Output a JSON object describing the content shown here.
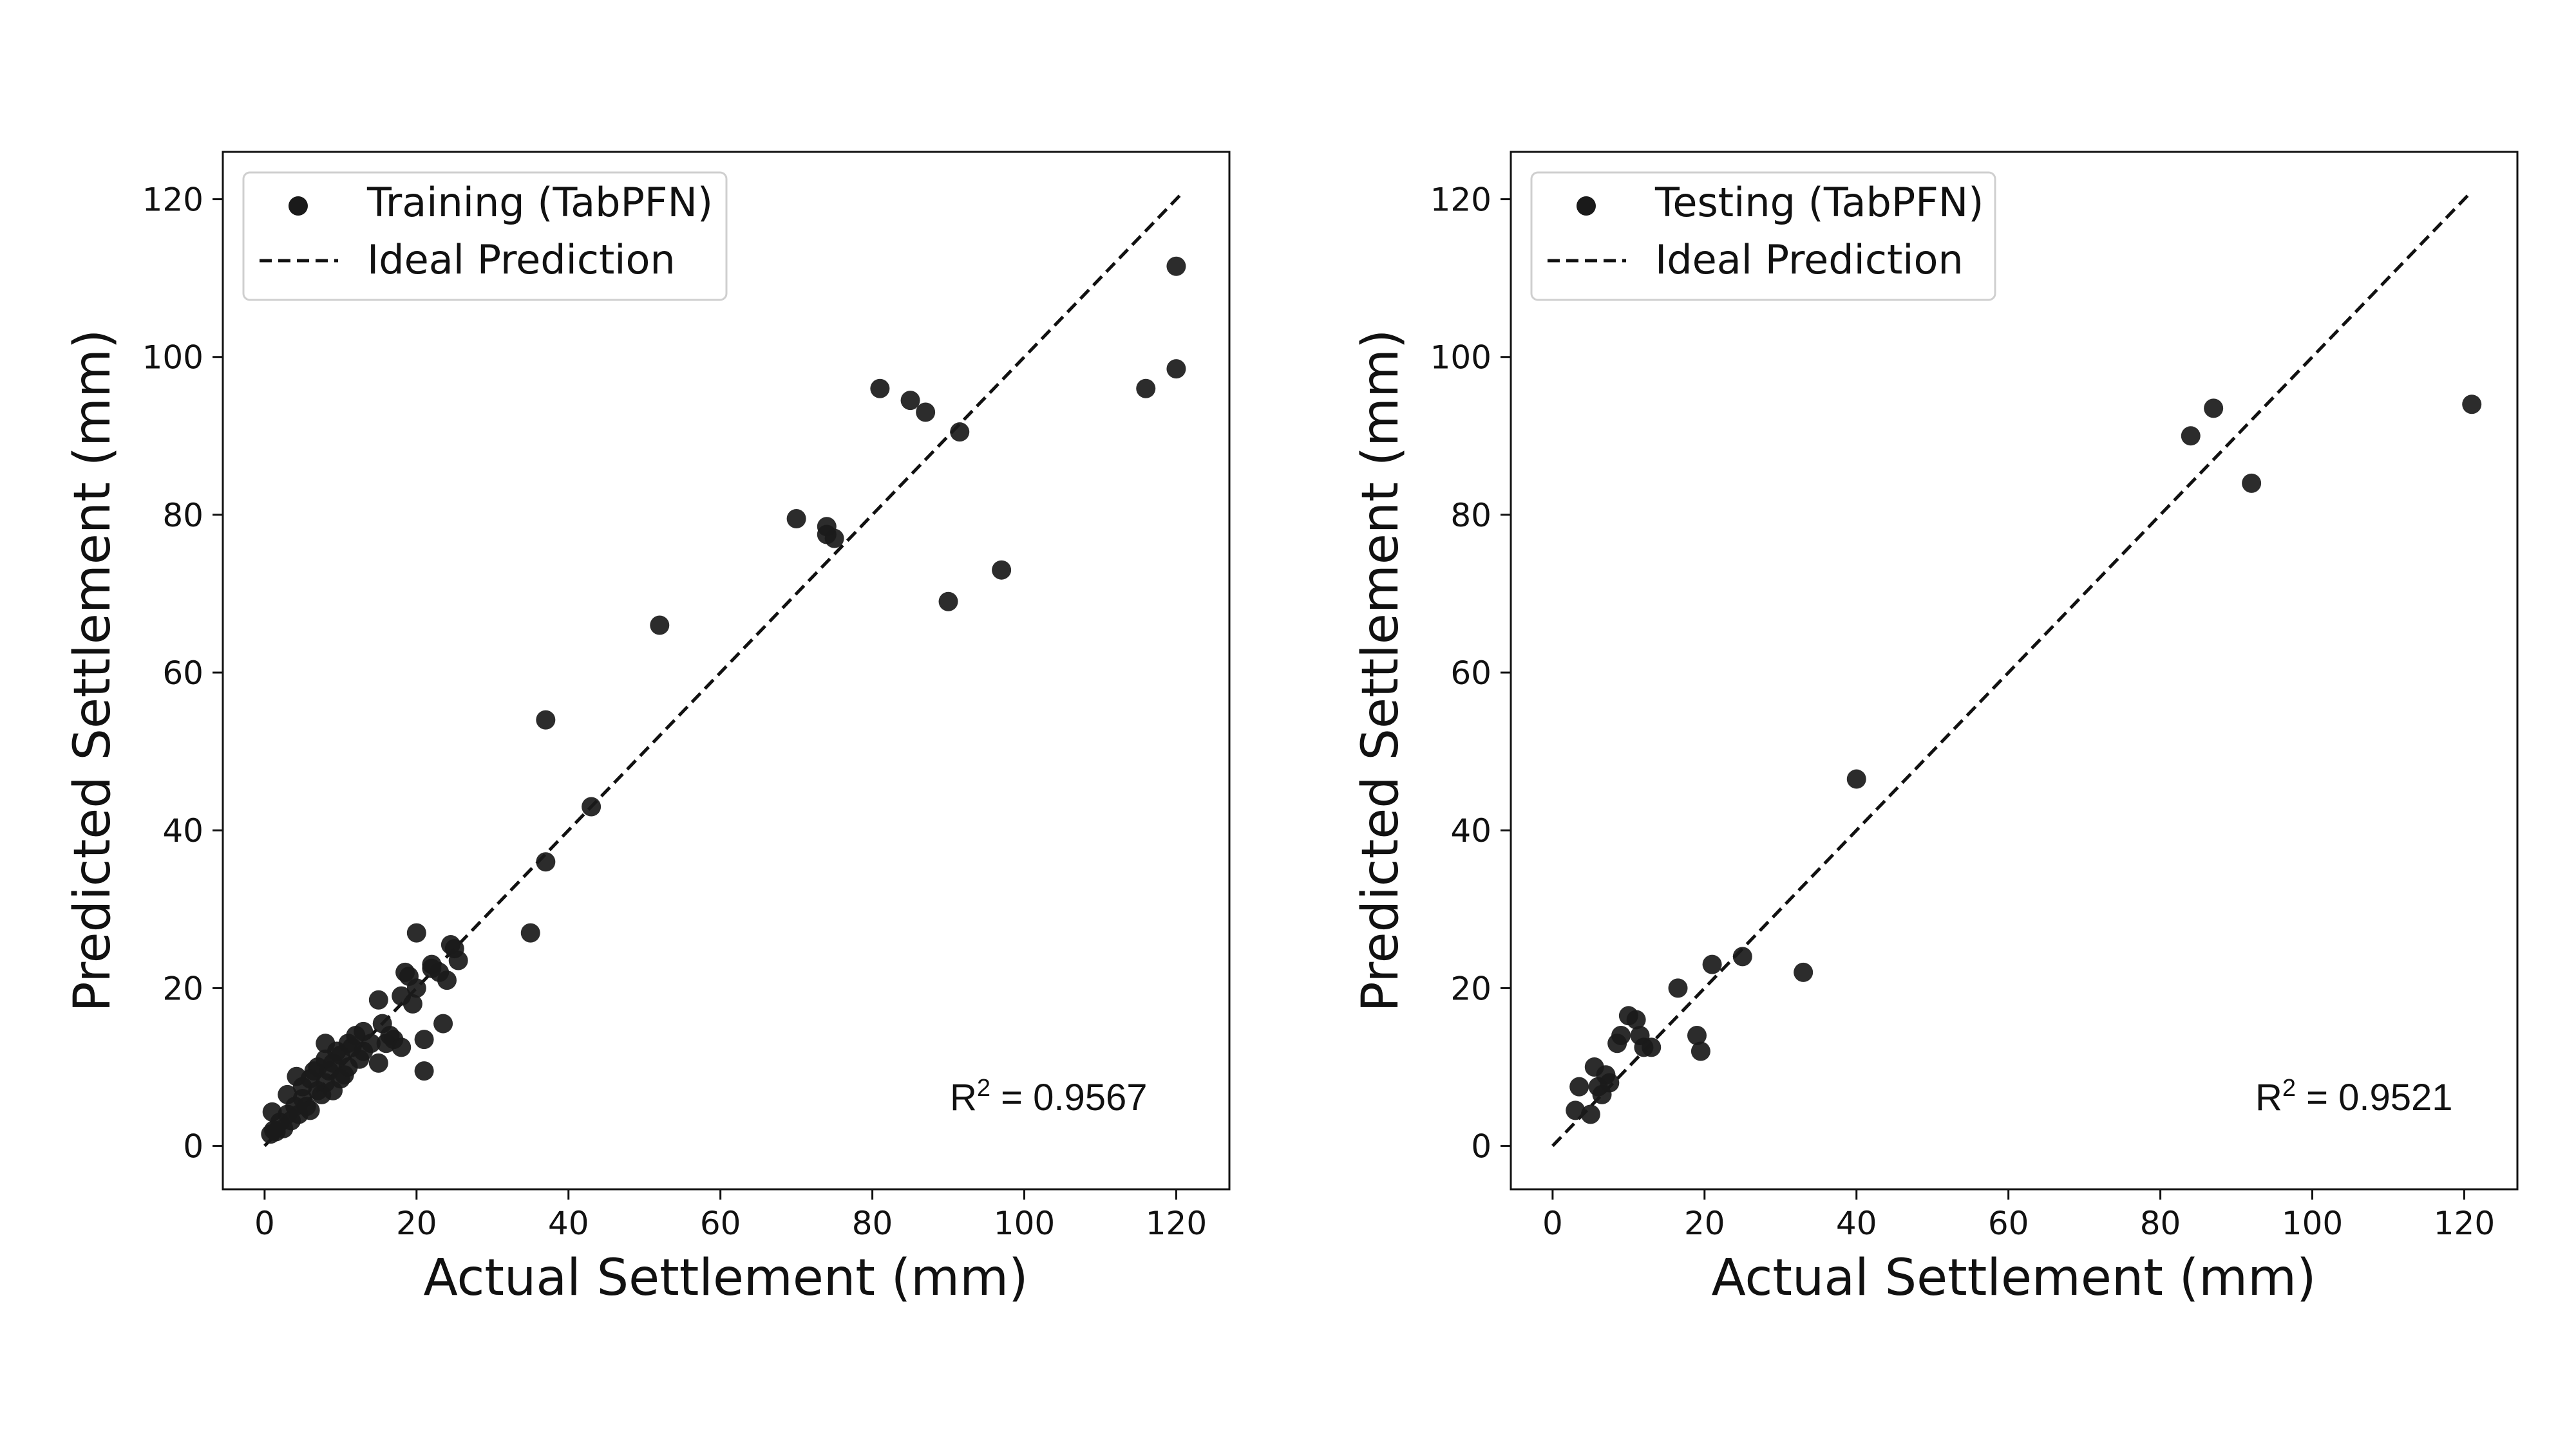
{
  "chart_data": [
    {
      "type": "scatter",
      "xlabel": "Actual Settlement (mm)",
      "ylabel": "Predicted Settlement (mm)",
      "xlim": [
        -5.5,
        127
      ],
      "ylim": [
        -5.5,
        126
      ],
      "xticks": [
        "0",
        "20",
        "40",
        "60",
        "80",
        "100",
        "120"
      ],
      "yticks": [
        "0",
        "20",
        "40",
        "60",
        "80",
        "100",
        "120"
      ],
      "grid": false,
      "legend_position": "top-left",
      "series": [
        {
          "name": "Training (TabPFN)",
          "marker": "circle",
          "color": "#1a1a1a",
          "points": [
            [
              0.8,
              1.5
            ],
            [
              1.0,
              4.3
            ],
            [
              1.2,
              2.0
            ],
            [
              1.5,
              1.8
            ],
            [
              2.0,
              3.0
            ],
            [
              2.5,
              2.2
            ],
            [
              3.0,
              4.0
            ],
            [
              3.0,
              6.5
            ],
            [
              3.5,
              3.2
            ],
            [
              4.0,
              5.0
            ],
            [
              4.2,
              8.8
            ],
            [
              4.5,
              4.0
            ],
            [
              5.0,
              6.0
            ],
            [
              5.0,
              7.5
            ],
            [
              5.5,
              5.0
            ],
            [
              6.0,
              8.5
            ],
            [
              6.0,
              4.5
            ],
            [
              6.5,
              9.5
            ],
            [
              7.0,
              7.0
            ],
            [
              7.0,
              10.0
            ],
            [
              7.5,
              6.5
            ],
            [
              8.0,
              8.0
            ],
            [
              8.0,
              11.0
            ],
            [
              8.0,
              13.0
            ],
            [
              8.5,
              9.5
            ],
            [
              9.0,
              7.0
            ],
            [
              9.0,
              10.5
            ],
            [
              9.5,
              12.0
            ],
            [
              10.0,
              8.5
            ],
            [
              10.0,
              11.5
            ],
            [
              10.5,
              9.0
            ],
            [
              11.0,
              13.0
            ],
            [
              11.0,
              10.0
            ],
            [
              11.5,
              12.5
            ],
            [
              12.0,
              14.0
            ],
            [
              12.5,
              11.0
            ],
            [
              13.0,
              14.5
            ],
            [
              13.0,
              12.0
            ],
            [
              14.0,
              13.0
            ],
            [
              15.0,
              18.5
            ],
            [
              15.0,
              10.5
            ],
            [
              15.5,
              15.5
            ],
            [
              16.0,
              13.0
            ],
            [
              16.5,
              14.0
            ],
            [
              17.0,
              13.5
            ],
            [
              18.0,
              19.0
            ],
            [
              18.0,
              12.5
            ],
            [
              18.5,
              22.0
            ],
            [
              19.0,
              21.5
            ],
            [
              19.5,
              18.0
            ],
            [
              20.0,
              27.0
            ],
            [
              20.0,
              20.0
            ],
            [
              21.0,
              9.5
            ],
            [
              21.0,
              13.5
            ],
            [
              22.0,
              23.0
            ],
            [
              22.0,
              22.5
            ],
            [
              23.0,
              22.0
            ],
            [
              23.5,
              15.5
            ],
            [
              24.0,
              21.0
            ],
            [
              24.5,
              25.5
            ],
            [
              25.0,
              25.0
            ],
            [
              25.5,
              23.5
            ],
            [
              35.0,
              27.0
            ],
            [
              37.0,
              54.0
            ],
            [
              37.0,
              36.0
            ],
            [
              43.0,
              43.0
            ],
            [
              52.0,
              66.0
            ],
            [
              70.0,
              79.5
            ],
            [
              74.0,
              78.5
            ],
            [
              74.0,
              77.5
            ],
            [
              75.0,
              77.0
            ],
            [
              81.0,
              96.0
            ],
            [
              85.0,
              94.5
            ],
            [
              87.0,
              93.0
            ],
            [
              90.0,
              69.0
            ],
            [
              91.5,
              90.5
            ],
            [
              97.0,
              73.0
            ],
            [
              116.0,
              96.0
            ],
            [
              120.0,
              111.5
            ],
            [
              120.0,
              98.5
            ]
          ]
        },
        {
          "name": "Ideal Prediction",
          "line_style": "dashed",
          "color": "#111111",
          "points": [
            [
              0,
              0
            ],
            [
              121,
              121
            ]
          ]
        }
      ],
      "annotations": [
        {
          "base": "R",
          "superscript": "2",
          "text": " = 0.9567",
          "position": "bottom-right"
        }
      ]
    },
    {
      "type": "scatter",
      "xlabel": "Actual Settlement (mm)",
      "ylabel": "Predicted Settlement (mm)",
      "xlim": [
        -5.5,
        127
      ],
      "ylim": [
        -5.5,
        126
      ],
      "xticks": [
        "0",
        "20",
        "40",
        "60",
        "80",
        "100",
        "120"
      ],
      "yticks": [
        "0",
        "20",
        "40",
        "60",
        "80",
        "100",
        "120"
      ],
      "grid": false,
      "legend_position": "top-left",
      "series": [
        {
          "name": "Testing (TabPFN)",
          "marker": "circle",
          "color": "#1a1a1a",
          "points": [
            [
              3.0,
              4.5
            ],
            [
              3.5,
              7.5
            ],
            [
              5.0,
              4.0
            ],
            [
              5.5,
              10.0
            ],
            [
              6.0,
              7.5
            ],
            [
              6.5,
              6.5
            ],
            [
              7.0,
              9.0
            ],
            [
              7.5,
              8.0
            ],
            [
              8.5,
              13.0
            ],
            [
              9.0,
              14.0
            ],
            [
              10.0,
              16.5
            ],
            [
              11.0,
              16.0
            ],
            [
              11.5,
              14.0
            ],
            [
              12.0,
              12.5
            ],
            [
              13.0,
              12.5
            ],
            [
              16.5,
              20.0
            ],
            [
              19.0,
              14.0
            ],
            [
              19.5,
              12.0
            ],
            [
              21.0,
              23.0
            ],
            [
              25.0,
              24.0
            ],
            [
              33.0,
              22.0
            ],
            [
              40.0,
              46.5
            ],
            [
              84.0,
              90.0
            ],
            [
              87.0,
              93.5
            ],
            [
              92.0,
              84.0
            ],
            [
              121.0,
              94.0
            ]
          ]
        },
        {
          "name": "Ideal Prediction",
          "line_style": "dashed",
          "color": "#111111",
          "points": [
            [
              0,
              0
            ],
            [
              121,
              121
            ]
          ]
        }
      ],
      "annotations": [
        {
          "base": "R",
          "superscript": "2",
          "text": " = 0.9521",
          "position": "bottom-right"
        }
      ]
    }
  ]
}
